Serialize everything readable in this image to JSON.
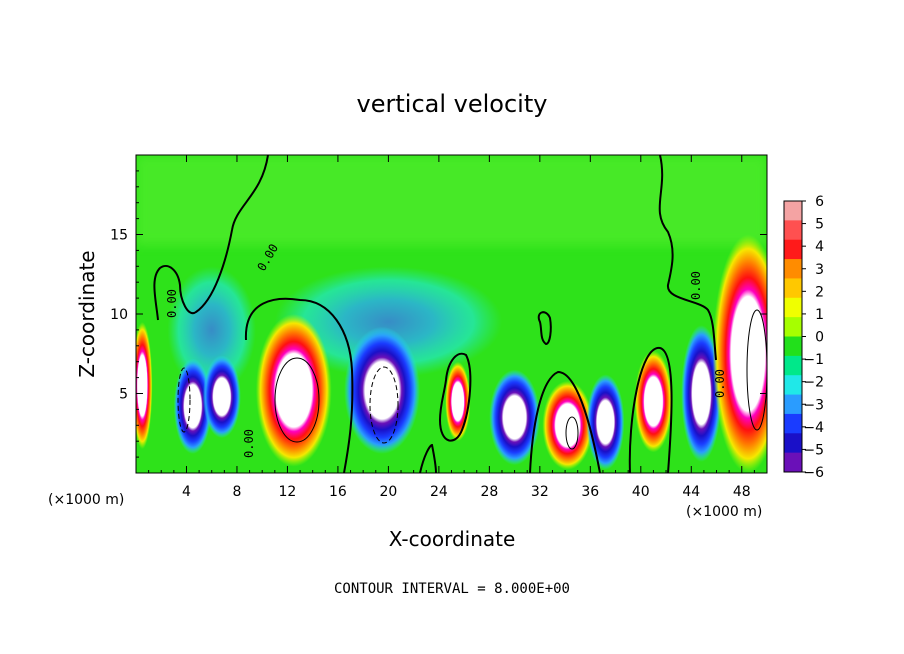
{
  "chart_data": {
    "type": "heatmap",
    "title": "vertical velocity",
    "xlabel": "X-coordinate",
    "ylabel": "Z-coordinate",
    "x_unit_left": "(×1000 m)",
    "x_unit_right": "(×1000 m)",
    "footer": "CONTOUR INTERVAL = 8.000E+00",
    "xlim": [
      0,
      50
    ],
    "ylim": [
      0,
      20
    ],
    "x_ticks": [
      4,
      8,
      12,
      16,
      20,
      24,
      28,
      32,
      36,
      40,
      44,
      48
    ],
    "y_ticks": [
      5,
      10,
      15
    ],
    "colorbar": {
      "range": [
        -6,
        6
      ],
      "ticks": [
        6,
        5,
        4,
        3,
        2,
        1,
        0,
        -1,
        -2,
        -3,
        -4,
        -5,
        -6
      ],
      "colors": [
        "#f4a3a3",
        "#ff5050",
        "#ff1a1a",
        "#ff8c00",
        "#ffc800",
        "#f0ff00",
        "#a6ff00",
        "#22e01b",
        "#00e88a",
        "#20e8e8",
        "#2a9cff",
        "#1a3cff",
        "#1a10c8",
        "#6a10b8"
      ]
    },
    "contour_label": "0.00",
    "features": [
      {
        "type": "updraft",
        "x": 0.5,
        "z": 5.5,
        "rx": 0.8,
        "rz": 4
      },
      {
        "type": "downdraft",
        "x": 4.5,
        "z": 4.2,
        "rx": 1.5,
        "rz": 3
      },
      {
        "type": "downdraft",
        "x": 6.8,
        "z": 4.8,
        "rx": 1.5,
        "rz": 2.6
      },
      {
        "type": "updraft",
        "x": 12.5,
        "z": 5.2,
        "rx": 3,
        "rz": 4.8
      },
      {
        "type": "downdraft",
        "x": 19.5,
        "z": 5.2,
        "rx": 3,
        "rz": 4
      },
      {
        "type": "updraft",
        "x": 25.5,
        "z": 4.5,
        "rx": 1,
        "rz": 2.5
      },
      {
        "type": "downdraft",
        "x": 30,
        "z": 3.5,
        "rx": 2,
        "rz": 3
      },
      {
        "type": "updraft",
        "x": 34.2,
        "z": 3,
        "rx": 2,
        "rz": 2.8
      },
      {
        "type": "downdraft",
        "x": 37.2,
        "z": 3.2,
        "rx": 1.5,
        "rz": 3
      },
      {
        "type": "updraft",
        "x": 41,
        "z": 4.5,
        "rx": 1.5,
        "rz": 3.2
      },
      {
        "type": "downdraft",
        "x": 44.8,
        "z": 5,
        "rx": 1.6,
        "rz": 4.3
      },
      {
        "type": "updraft",
        "x": 48.5,
        "z": 7.5,
        "rx": 2.8,
        "rz": 7.5
      },
      {
        "type": "weak-downdraft",
        "x": 20,
        "z": 9.5,
        "rx": 9,
        "rz": 3.5
      },
      {
        "type": "weak-downdraft",
        "x": 6,
        "z": 9,
        "rx": 3.5,
        "rz": 4
      }
    ]
  }
}
